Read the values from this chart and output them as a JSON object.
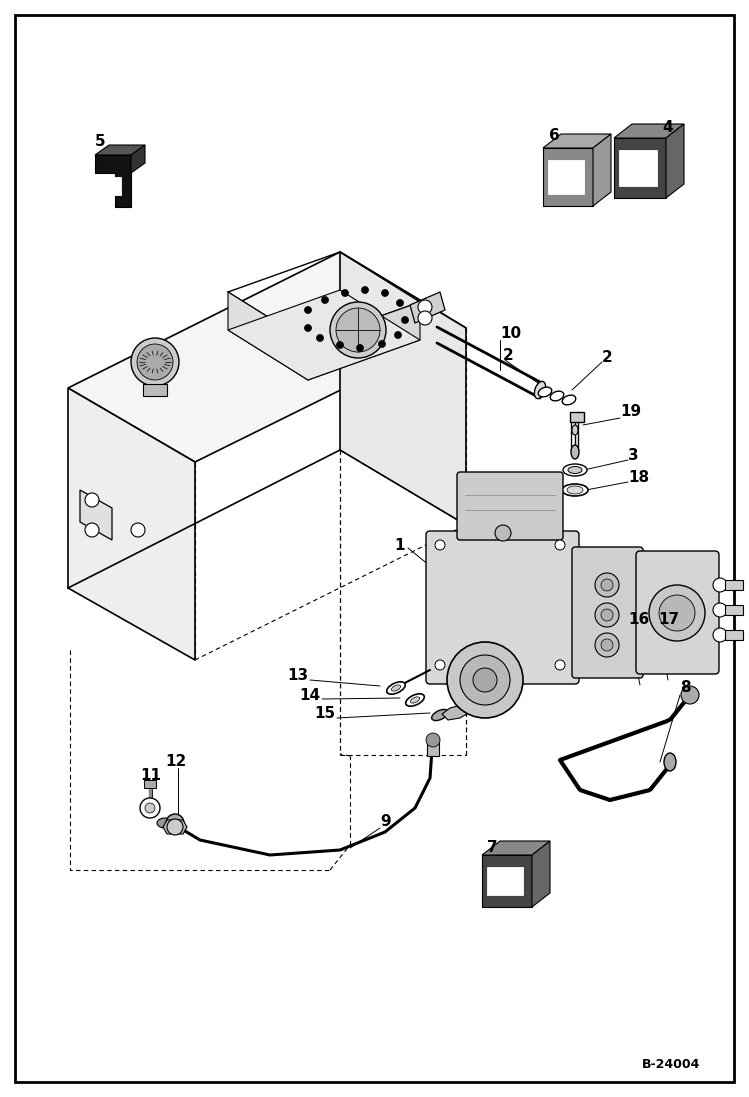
{
  "background_color": "#ffffff",
  "border_color": "#000000",
  "figure_width": 7.49,
  "figure_height": 10.97,
  "dpi": 100,
  "watermark": "B-24004"
}
